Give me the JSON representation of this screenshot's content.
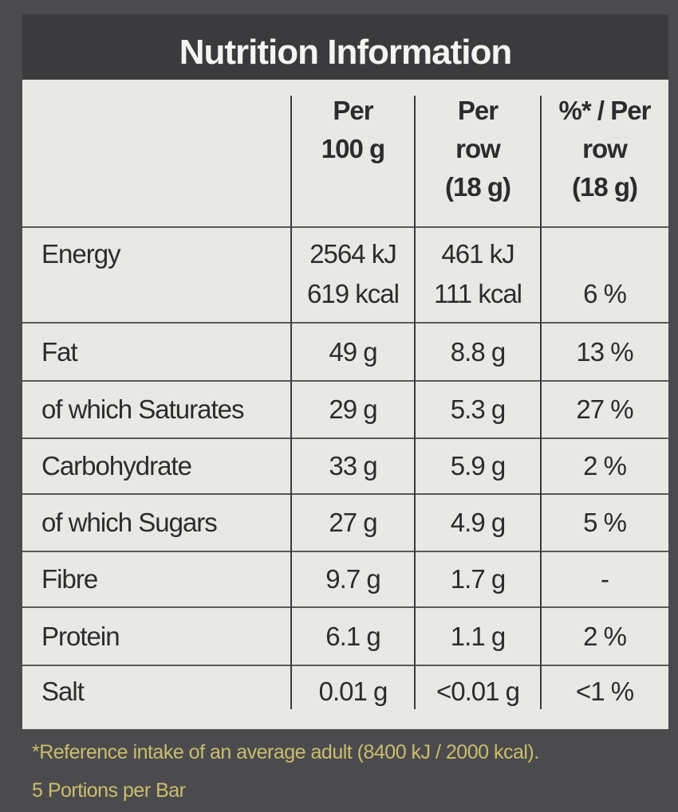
{
  "header": {
    "title": "Nutrition Information"
  },
  "table": {
    "columns": [
      [
        "Per",
        "100 g"
      ],
      [
        "Per",
        "row",
        "(18 g)"
      ],
      [
        "%* / Per",
        "row",
        "(18 g)"
      ]
    ],
    "rows": [
      [
        "Energy",
        [
          "2564 kJ",
          "619 kcal"
        ],
        [
          "461 kJ",
          "111 kcal"
        ],
        "6 %"
      ],
      [
        "Fat",
        "49 g",
        "8.8 g",
        "13 %"
      ],
      [
        "of which Saturates",
        "29 g",
        "5.3 g",
        "27 %"
      ],
      [
        "Carbohydrate",
        "33 g",
        "5.9 g",
        "2 %"
      ],
      [
        "of which Sugars",
        "27 g",
        "4.9 g",
        "5 %"
      ],
      [
        "Fibre",
        "9.7 g",
        "1.7 g",
        "-"
      ],
      [
        "Protein",
        "6.1 g",
        "1.1 g",
        "2 %"
      ],
      [
        "Salt",
        "0.01 g",
        "<0.01 g",
        "<1 %"
      ]
    ]
  },
  "footer": {
    "lines": [
      "*Reference intake of an average adult (8400 kJ / 2000 kcal).",
      "5 Portions per Bar"
    ]
  }
}
